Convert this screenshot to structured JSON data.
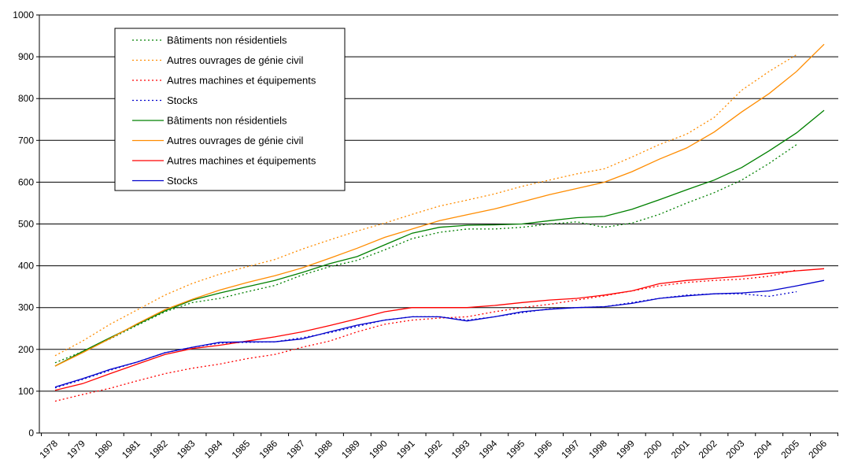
{
  "chart_data": {
    "type": "line",
    "title": "",
    "xlabel": "",
    "ylabel": "",
    "ylim": [
      0,
      1000
    ],
    "yticks": [
      "0",
      "100",
      "200",
      "300",
      "400",
      "500",
      "600",
      "700",
      "800",
      "900",
      "1000"
    ],
    "categories": [
      "1978",
      "1979",
      "1980",
      "1981",
      "1982",
      "1983",
      "1984",
      "1985",
      "1986",
      "1987",
      "1988",
      "1989",
      "1990",
      "1991",
      "1992",
      "1993",
      "1994",
      "1995",
      "1996",
      "1997",
      "1998",
      "1999",
      "2000",
      "2001",
      "2002",
      "2003",
      "2004",
      "2005",
      "2006"
    ],
    "grid": "horizontal",
    "legend_position": "top-left",
    "series": [
      {
        "name": "Bâtiments non résidentiels",
        "style": "dotted",
        "color": "#008000",
        "values": [
          168,
          195,
          225,
          258,
          290,
          312,
          322,
          338,
          353,
          378,
          398,
          413,
          438,
          465,
          480,
          488,
          488,
          492,
          500,
          505,
          492,
          502,
          523,
          550,
          575,
          605,
          645,
          690,
          null
        ]
      },
      {
        "name": "Autres ouvrages de génie civil",
        "style": "dotted",
        "color": "#FF8C00",
        "values": [
          185,
          220,
          260,
          295,
          330,
          358,
          380,
          398,
          415,
          440,
          462,
          483,
          502,
          523,
          543,
          557,
          572,
          590,
          605,
          620,
          632,
          660,
          690,
          715,
          755,
          820,
          865,
          905,
          null
        ]
      },
      {
        "name": "Autres machines et équipements",
        "style": "dotted",
        "color": "#FF0000",
        "values": [
          76,
          92,
          107,
          125,
          142,
          155,
          165,
          178,
          188,
          205,
          220,
          242,
          260,
          270,
          275,
          278,
          290,
          300,
          308,
          318,
          328,
          340,
          352,
          360,
          365,
          368,
          375,
          390,
          null
        ]
      },
      {
        "name": "Stocks",
        "style": "dotted",
        "color": "#0000CC",
        "values": [
          108,
          128,
          150,
          170,
          192,
          205,
          215,
          217,
          218,
          228,
          240,
          255,
          270,
          278,
          278,
          270,
          278,
          288,
          297,
          300,
          302,
          312,
          322,
          330,
          333,
          333,
          327,
          338,
          null
        ]
      },
      {
        "name": "Bâtiments non résidentiels",
        "style": "solid",
        "color": "#008000",
        "values": [
          160,
          195,
          228,
          260,
          292,
          318,
          335,
          350,
          365,
          384,
          405,
          422,
          450,
          478,
          492,
          497,
          498,
          500,
          508,
          515,
          518,
          535,
          558,
          582,
          605,
          635,
          675,
          718,
          772
        ]
      },
      {
        "name": "Autres ouvrages de génie civil",
        "style": "solid",
        "color": "#FF8C00",
        "values": [
          160,
          192,
          226,
          262,
          295,
          320,
          342,
          360,
          376,
          395,
          418,
          442,
          468,
          488,
          508,
          522,
          536,
          553,
          570,
          585,
          600,
          625,
          655,
          682,
          720,
          768,
          812,
          865,
          930
        ]
      },
      {
        "name": "Autres machines et équipements",
        "style": "solid",
        "color": "#FF0000",
        "values": [
          102,
          118,
          142,
          165,
          188,
          202,
          210,
          220,
          230,
          242,
          257,
          273,
          290,
          300,
          300,
          300,
          305,
          312,
          318,
          322,
          330,
          340,
          357,
          365,
          370,
          375,
          382,
          388,
          393
        ]
      },
      {
        "name": "Stocks",
        "style": "solid",
        "color": "#0000CC",
        "values": [
          110,
          130,
          152,
          170,
          192,
          205,
          217,
          218,
          218,
          225,
          242,
          258,
          270,
          278,
          278,
          268,
          278,
          290,
          296,
          300,
          302,
          310,
          322,
          328,
          333,
          335,
          340,
          352,
          365
        ]
      }
    ]
  }
}
